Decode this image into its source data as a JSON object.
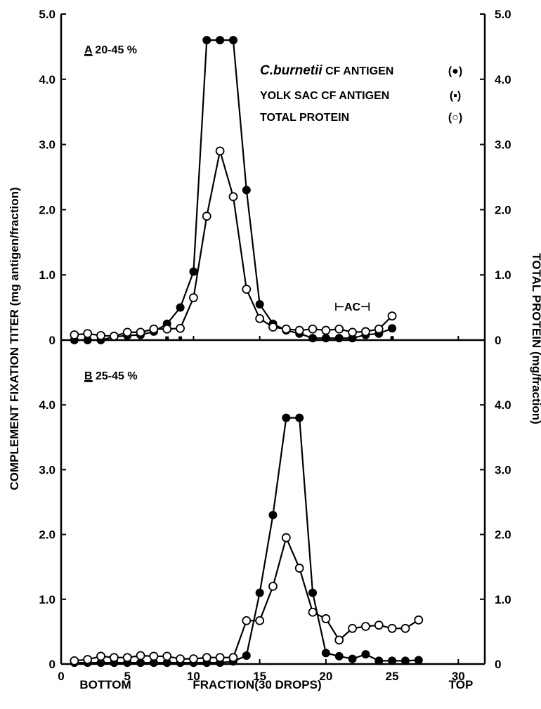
{
  "chart_data": {
    "type": "line",
    "x_ticks": [
      "0",
      "5",
      "10",
      "15",
      "20",
      "25",
      "30"
    ],
    "xlim": [
      0,
      32
    ],
    "x_under_left": "BOTTOM",
    "xlabel": "FRACTION(30 DROPS)",
    "x_under_right": "TOP",
    "ylabel_left": "COMPLEMENT FIXATION TITER (mg antigen/fraction)",
    "ylabel_right": "TOTAL PROTEIN (mg/fraction)",
    "legend": [
      {
        "label_italic": "C.burnetii",
        "label": " CF ANTIGEN",
        "symbol": "(●)",
        "marker": "filled-circle"
      },
      {
        "label_italic": "",
        "label": "YOLK SAC CF ANTIGEN",
        "symbol": "(▪)",
        "marker": "square"
      },
      {
        "label_italic": "",
        "label": "TOTAL PROTEIN",
        "symbol": "(○)",
        "marker": "open-circle"
      }
    ],
    "panels": [
      {
        "id": "A",
        "label_letter": "A",
        "label_rest": " 20-45 %",
        "ylim": [
          0,
          5.0
        ],
        "left_ticks": [
          "0",
          "1.0",
          "2.0",
          "3.0",
          "4.0",
          "5.0"
        ],
        "right_ticks": [
          "0",
          "1.0",
          "2.0",
          "3.0",
          "4.0",
          "5.0"
        ],
        "annotation": "⊢AC⊣",
        "annotation_x": 22,
        "annotation_y": 0.45,
        "series": [
          {
            "name": "C.burnetii CF ANTIGEN",
            "marker": "filled-circle",
            "x": [
              1,
              2,
              3,
              4,
              5,
              6,
              7,
              8,
              9,
              10,
              11,
              12,
              13,
              14,
              15,
              16,
              17,
              18,
              19,
              20,
              21,
              22,
              23,
              24,
              25
            ],
            "y": [
              0.0,
              0.0,
              0.0,
              0.05,
              0.07,
              0.08,
              0.13,
              0.25,
              0.5,
              1.05,
              4.6,
              4.6,
              4.6,
              2.3,
              0.55,
              0.25,
              0.15,
              0.1,
              0.03,
              0.03,
              0.03,
              0.03,
              0.08,
              0.1,
              0.18
            ]
          },
          {
            "name": "YOLK SAC CF ANTIGEN",
            "marker": "square",
            "x": [
              8,
              9,
              25
            ],
            "y": [
              0.03,
              0.03,
              0.03
            ]
          },
          {
            "name": "TOTAL PROTEIN",
            "marker": "open-circle",
            "x": [
              1,
              2,
              3,
              4,
              5,
              6,
              7,
              8,
              9,
              10,
              11,
              12,
              13,
              14,
              15,
              16,
              17,
              18,
              19,
              20,
              21,
              22,
              23,
              24,
              25
            ],
            "y": [
              0.08,
              0.1,
              0.07,
              0.06,
              0.12,
              0.12,
              0.17,
              0.17,
              0.18,
              0.65,
              1.9,
              2.9,
              2.2,
              0.78,
              0.33,
              0.2,
              0.17,
              0.15,
              0.17,
              0.15,
              0.17,
              0.12,
              0.13,
              0.17,
              0.37
            ]
          }
        ]
      },
      {
        "id": "B",
        "label_letter": "B",
        "label_rest": " 25-45 %",
        "ylim": [
          0,
          5.0
        ],
        "left_ticks": [
          "0",
          "1.0",
          "2.0",
          "3.0",
          "4.0"
        ],
        "right_ticks": [
          "0",
          "1.0",
          "2.0",
          "3.0",
          "4.0"
        ],
        "annotation": "",
        "series": [
          {
            "name": "C.burnetii CF ANTIGEN",
            "marker": "filled-circle",
            "x": [
              1,
              2,
              3,
              4,
              5,
              6,
              7,
              8,
              9,
              10,
              11,
              12,
              13,
              14,
              15,
              16,
              17,
              18,
              19,
              20,
              21,
              22,
              23,
              24,
              25,
              26,
              27
            ],
            "y": [
              0.02,
              0.02,
              0.02,
              0.02,
              0.02,
              0.02,
              0.02,
              0.02,
              0.02,
              0.02,
              0.02,
              0.02,
              0.04,
              0.13,
              1.1,
              2.3,
              3.8,
              3.8,
              1.1,
              0.17,
              0.12,
              0.08,
              0.15,
              0.05,
              0.05,
              0.05,
              0.06
            ]
          },
          {
            "name": "TOTAL PROTEIN",
            "marker": "open-circle",
            "x": [
              1,
              2,
              3,
              4,
              5,
              6,
              7,
              8,
              9,
              10,
              11,
              12,
              13,
              14,
              15,
              16,
              17,
              18,
              19,
              20,
              21,
              22,
              23,
              24,
              25,
              26,
              27
            ],
            "y": [
              0.05,
              0.07,
              0.12,
              0.1,
              0.1,
              0.13,
              0.12,
              0.12,
              0.08,
              0.08,
              0.1,
              0.1,
              0.1,
              0.67,
              0.67,
              1.2,
              1.95,
              1.48,
              0.8,
              0.7,
              0.37,
              0.55,
              0.58,
              0.6,
              0.55,
              0.55,
              0.68
            ]
          }
        ]
      }
    ]
  }
}
